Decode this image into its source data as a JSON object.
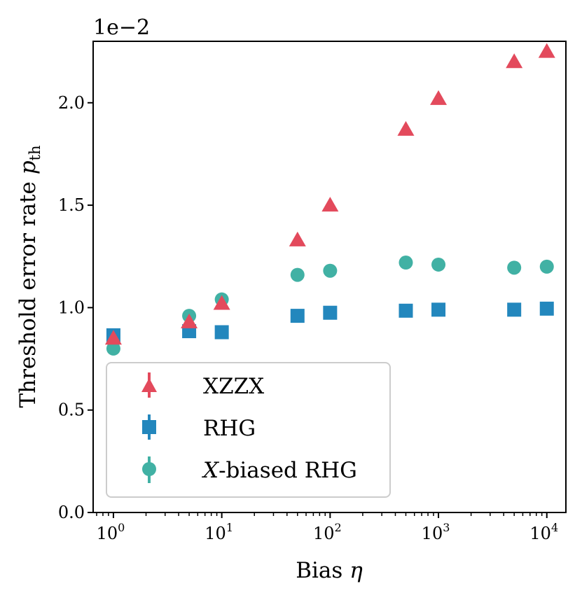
{
  "chart_data": {
    "type": "scatter",
    "title": "",
    "xlabel": "Bias",
    "xlabel_symbol": "η",
    "ylabel": "Threshold error rate",
    "ylabel_symbol": "p",
    "ylabel_subscript": "th",
    "offset_label": "1e−2",
    "xscale": "log",
    "xlim": [
      0.65,
      15000
    ],
    "ylim": [
      0.0,
      2.3
    ],
    "yticks": [
      0.0,
      0.5,
      1.0,
      1.5,
      2.0
    ],
    "ytick_labels": [
      "0.0",
      "0.5",
      "1.0",
      "1.5",
      "2.0"
    ],
    "xticks": [
      1,
      10,
      100,
      1000,
      10000
    ],
    "xtick_labels": [
      {
        "base": "10",
        "exp": "0"
      },
      {
        "base": "10",
        "exp": "1"
      },
      {
        "base": "10",
        "exp": "2"
      },
      {
        "base": "10",
        "exp": "3"
      },
      {
        "base": "10",
        "exp": "4"
      }
    ],
    "x": [
      1,
      5,
      10,
      50,
      100,
      500,
      1000,
      5000,
      10000
    ],
    "series": [
      {
        "name": "XZZX",
        "marker": "triangle",
        "color": "#e34a5c",
        "values": [
          0.85,
          0.93,
          1.02,
          1.33,
          1.5,
          1.87,
          2.02,
          2.2,
          2.25
        ]
      },
      {
        "name": "RHG",
        "marker": "square",
        "color": "#2387bd",
        "values": [
          0.865,
          0.885,
          0.88,
          0.96,
          0.975,
          0.985,
          0.99,
          0.99,
          0.995
        ]
      },
      {
        "name": "X-biased RHG",
        "name_italic": "X",
        "name_rest": "-biased RHG",
        "marker": "circle",
        "color": "#41b1a4",
        "values": [
          0.8,
          0.96,
          1.04,
          1.16,
          1.18,
          1.22,
          1.21,
          1.195,
          1.2
        ]
      }
    ],
    "legend_position": "lower-left",
    "grid": false
  }
}
